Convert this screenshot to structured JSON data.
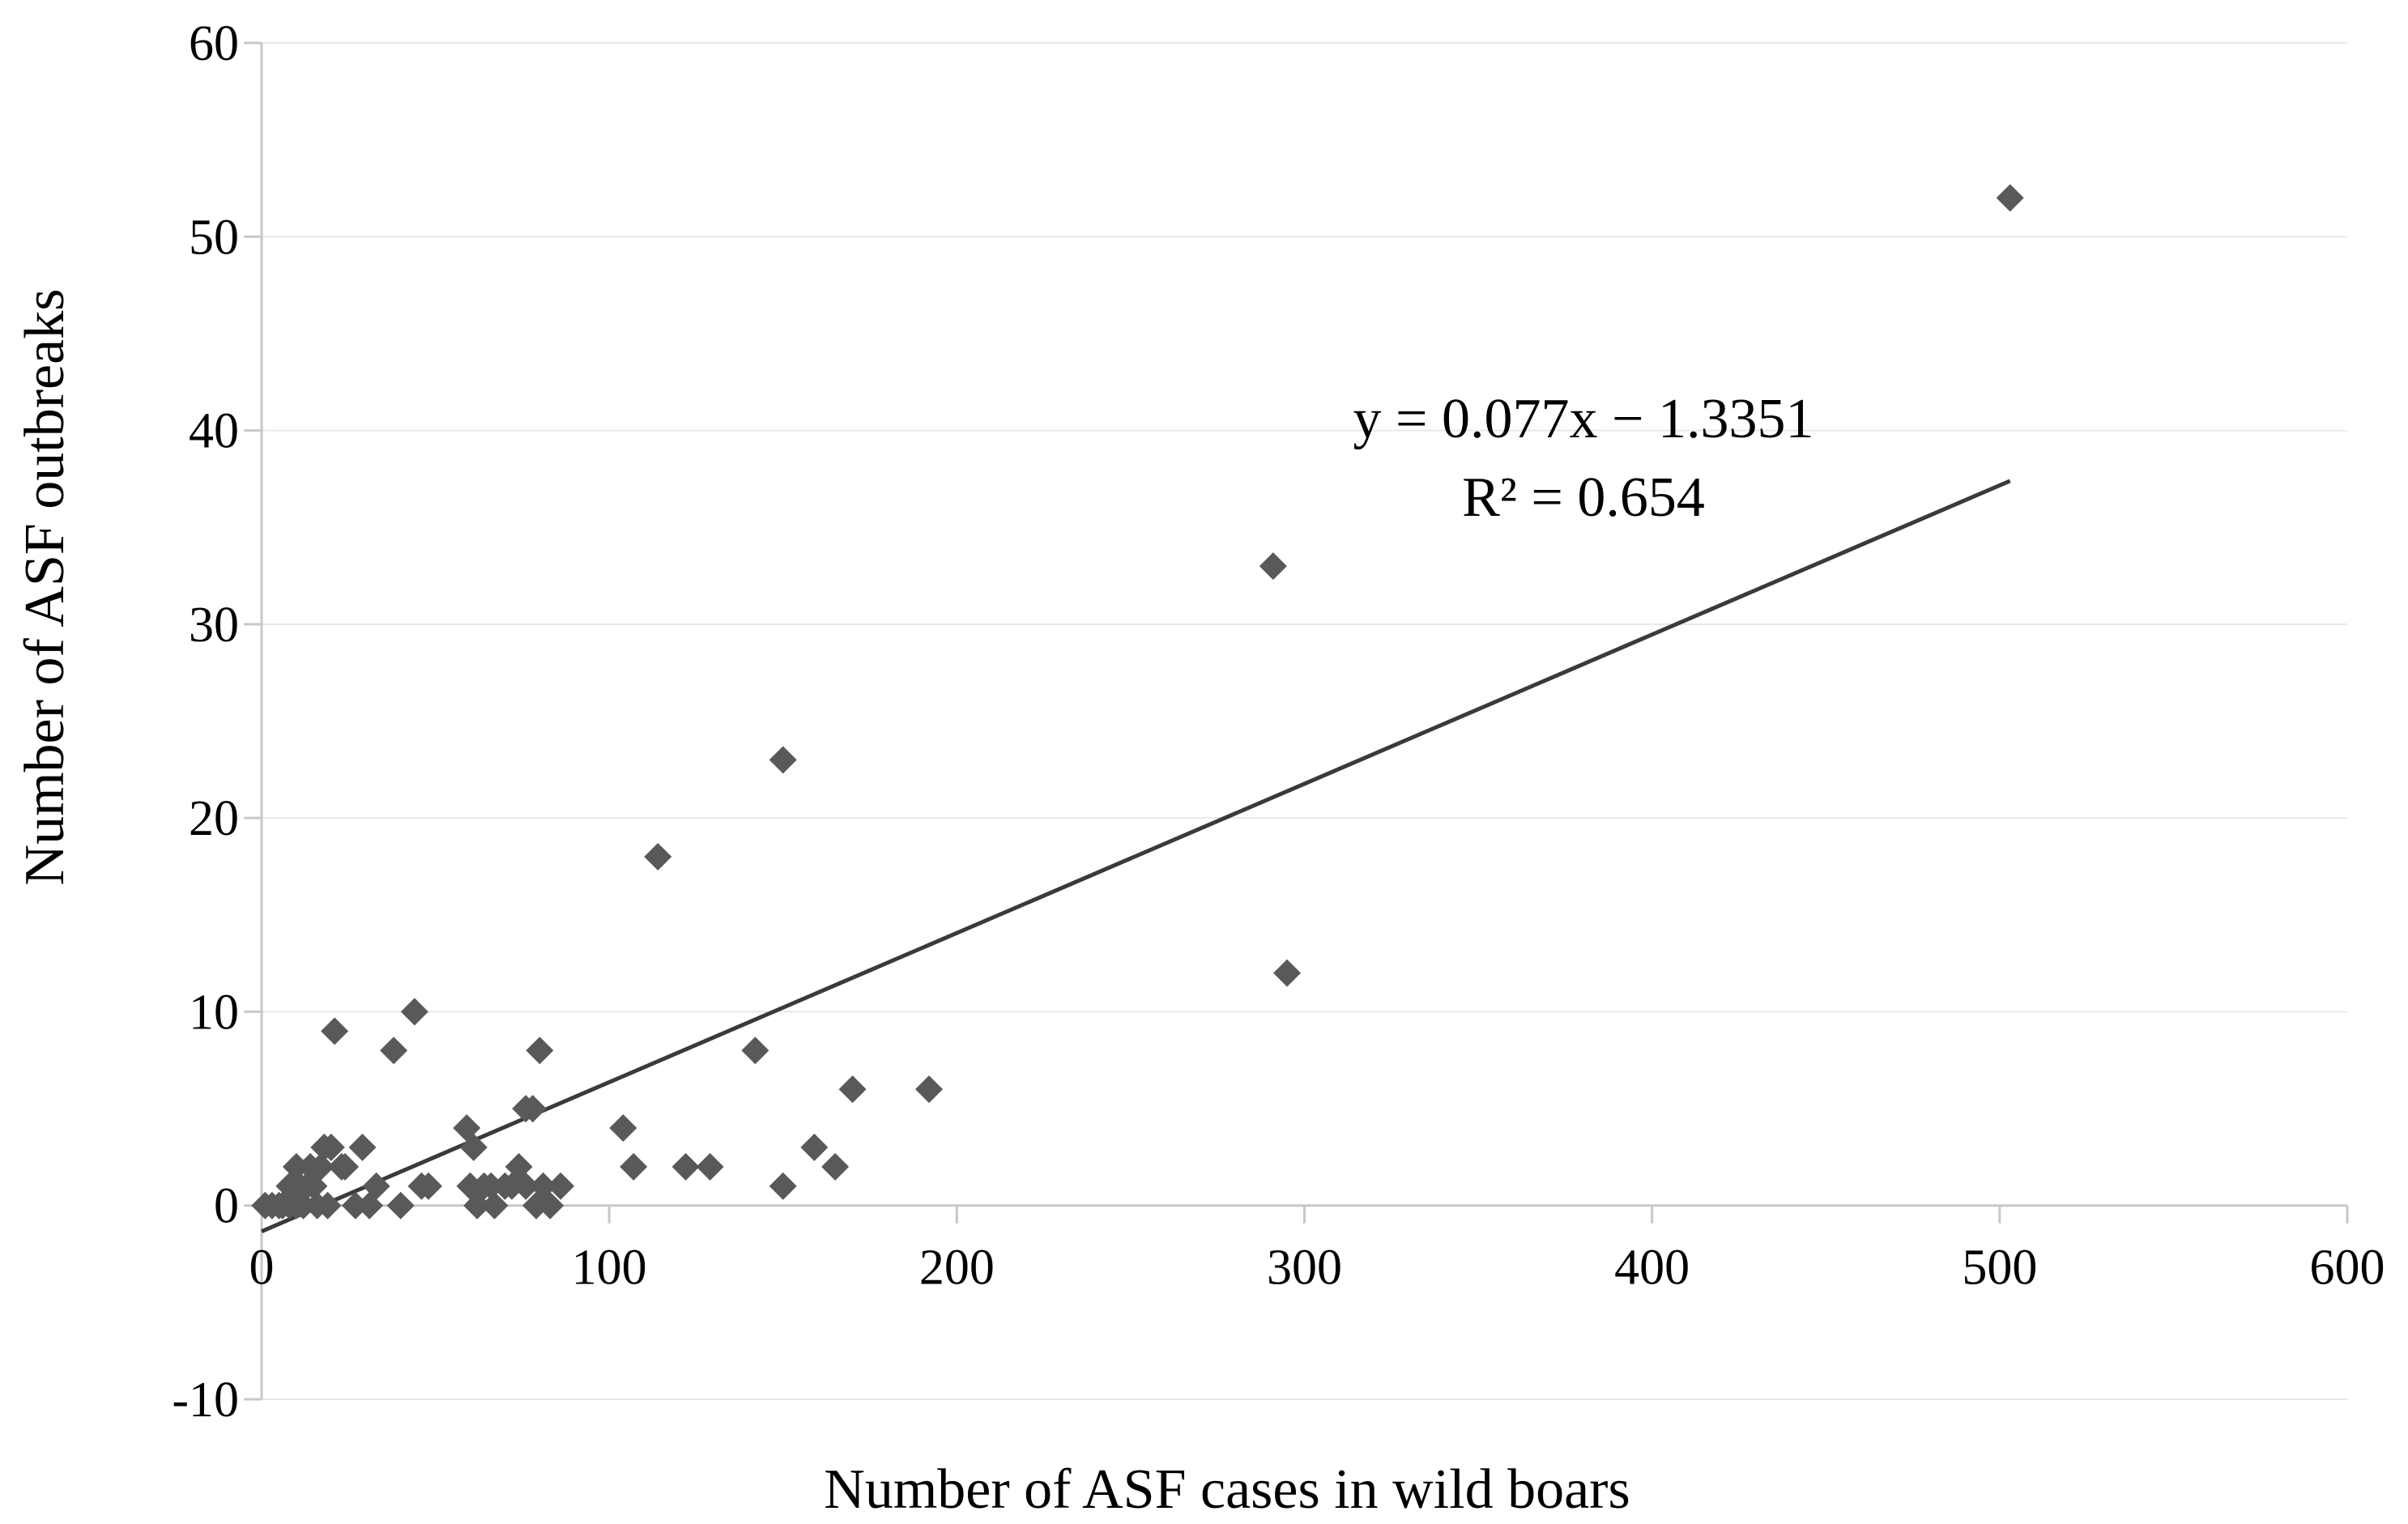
{
  "chart_data": {
    "type": "scatter",
    "title": "",
    "xlabel": "Number of ASF cases in wild boars",
    "ylabel": "Number of ASF outbreaks",
    "xlim": [
      0,
      600
    ],
    "ylim": [
      -10,
      60
    ],
    "xticks": [
      0,
      100,
      200,
      300,
      400,
      500,
      600
    ],
    "yticks": [
      -10,
      0,
      10,
      20,
      30,
      40,
      50,
      60
    ],
    "x_tick_labels": [
      "0",
      "100",
      "200",
      "300",
      "400",
      "500",
      "600"
    ],
    "y_tick_labels": [
      "-10",
      "0",
      "10",
      "20",
      "30",
      "40",
      "50",
      "60"
    ],
    "grid": "horizontal",
    "marker_color": "#595959",
    "trendline_color": "#3a3a3a",
    "series": [
      {
        "name": "ASF outbreaks",
        "points": [
          [
            1,
            0
          ],
          [
            3,
            0
          ],
          [
            5,
            0
          ],
          [
            6,
            0
          ],
          [
            8,
            0
          ],
          [
            8,
            1
          ],
          [
            9,
            1
          ],
          [
            10,
            2
          ],
          [
            10,
            0
          ],
          [
            11,
            1
          ],
          [
            12,
            0
          ],
          [
            13,
            1
          ],
          [
            14,
            2
          ],
          [
            15,
            1
          ],
          [
            16,
            0
          ],
          [
            17,
            2
          ],
          [
            18,
            3
          ],
          [
            19,
            0
          ],
          [
            20,
            3
          ],
          [
            21,
            9
          ],
          [
            23,
            2
          ],
          [
            24,
            2
          ],
          [
            27,
            0
          ],
          [
            29,
            3
          ],
          [
            31,
            0
          ],
          [
            33,
            1
          ],
          [
            38,
            8
          ],
          [
            40,
            0
          ],
          [
            44,
            10
          ],
          [
            46,
            1
          ],
          [
            48,
            1
          ],
          [
            59,
            4
          ],
          [
            60,
            1
          ],
          [
            61,
            3
          ],
          [
            62,
            0
          ],
          [
            64,
            1
          ],
          [
            66,
            1
          ],
          [
            67,
            0
          ],
          [
            70,
            1
          ],
          [
            72,
            1
          ],
          [
            74,
            2
          ],
          [
            76,
            5
          ],
          [
            76,
            1
          ],
          [
            78,
            5
          ],
          [
            79,
            0
          ],
          [
            80,
            8
          ],
          [
            81,
            1
          ],
          [
            83,
            0
          ],
          [
            86,
            1
          ],
          [
            104,
            4
          ],
          [
            107,
            2
          ],
          [
            114,
            18
          ],
          [
            122,
            2
          ],
          [
            129,
            2
          ],
          [
            142,
            8
          ],
          [
            150,
            23
          ],
          [
            150,
            1
          ],
          [
            159,
            3
          ],
          [
            165,
            2
          ],
          [
            170,
            6
          ],
          [
            192,
            6
          ],
          [
            291,
            33
          ],
          [
            295,
            12
          ],
          [
            503,
            52
          ]
        ]
      }
    ],
    "trendline": {
      "type": "linear",
      "slope": 0.077,
      "intercept": -1.3351,
      "x_range": [
        0,
        503
      ],
      "equation_label": "y = 0.077x − 1.3351",
      "r2_label": "R² = 0.654"
    }
  }
}
